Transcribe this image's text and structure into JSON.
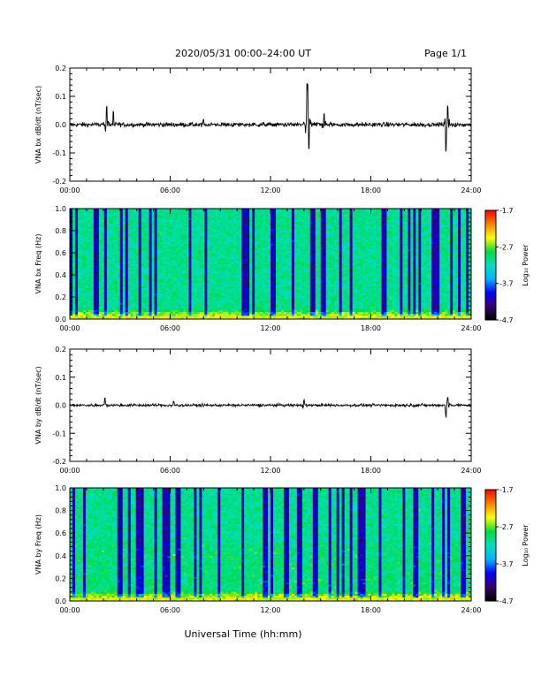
{
  "header": {
    "title": "2020/05/31  00:00–24:00 UT",
    "page": "Page 1/1"
  },
  "x_axis": {
    "range_hours": [
      0,
      24
    ],
    "tick_labels": [
      "00:00",
      "06:00",
      "12:00",
      "18:00",
      "24:00"
    ],
    "xlabel": "Universal Time (hh:mm)"
  },
  "colorbar": {
    "label": "Log₁₀ Power",
    "range": [
      -4.7,
      -1.7
    ],
    "tick_labels": [
      "-1.7",
      "-2.7",
      "-3.7",
      "-4.7"
    ],
    "colors": [
      "#000000",
      "#3a0070",
      "#0000ff",
      "#00b4ff",
      "#00e0c0",
      "#00dc40",
      "#ffff00",
      "#ff8000",
      "#ff0000"
    ]
  },
  "chart_data": [
    {
      "type": "line",
      "ylabel": "VNA bx dB/dt (nT/sec)",
      "ylim": [
        -0.2,
        0.2
      ],
      "y_tick_labels": [
        "0.2",
        "0.1",
        "0.0",
        "-0.1",
        "-0.2"
      ],
      "baseline": 0.0,
      "noise_amplitude": 0.008,
      "bursts": [
        {
          "time": 2.2,
          "amplitude": 0.07
        },
        {
          "time": 2.6,
          "amplitude": 0.05
        },
        {
          "time": 8.0,
          "amplitude": 0.02
        },
        {
          "time": 14.2,
          "amplitude": 0.15
        },
        {
          "time": 14.3,
          "amplitude": -0.09
        },
        {
          "time": 15.2,
          "amplitude": 0.04
        },
        {
          "time": 22.6,
          "amplitude": 0.06
        },
        {
          "time": 22.5,
          "amplitude": -0.1
        }
      ]
    },
    {
      "type": "heatmap",
      "ylabel": "VNA bx Freq (Hz)",
      "ylim": [
        0.0,
        1.0
      ],
      "y_tick_labels": [
        "1.0",
        "0.8",
        "0.6",
        "0.4",
        "0.2",
        "0.0"
      ],
      "z_range": [
        -4.7,
        -1.7
      ],
      "low_freq_enhancement": 0.03
    },
    {
      "type": "line",
      "ylabel": "VNA by dB/dt (nT/sec)",
      "ylim": [
        -0.2,
        0.2
      ],
      "y_tick_labels": [
        "0.2",
        "0.1",
        "0.0",
        "-0.1",
        "-0.2"
      ],
      "baseline": 0.0,
      "noise_amplitude": 0.005,
      "bursts": [
        {
          "time": 2.1,
          "amplitude": 0.03
        },
        {
          "time": 6.2,
          "amplitude": 0.015
        },
        {
          "time": 14.0,
          "amplitude": 0.02
        },
        {
          "time": 22.5,
          "amplitude": -0.04
        },
        {
          "time": 22.6,
          "amplitude": 0.03
        }
      ]
    },
    {
      "type": "heatmap",
      "ylabel": "VNA by Freq (Hz)",
      "ylim": [
        0.0,
        1.0
      ],
      "y_tick_labels": [
        "1.0",
        "0.8",
        "0.6",
        "0.4",
        "0.2",
        "0.0"
      ],
      "z_range": [
        -4.7,
        -1.7
      ],
      "low_freq_enhancement": 0.04
    }
  ]
}
